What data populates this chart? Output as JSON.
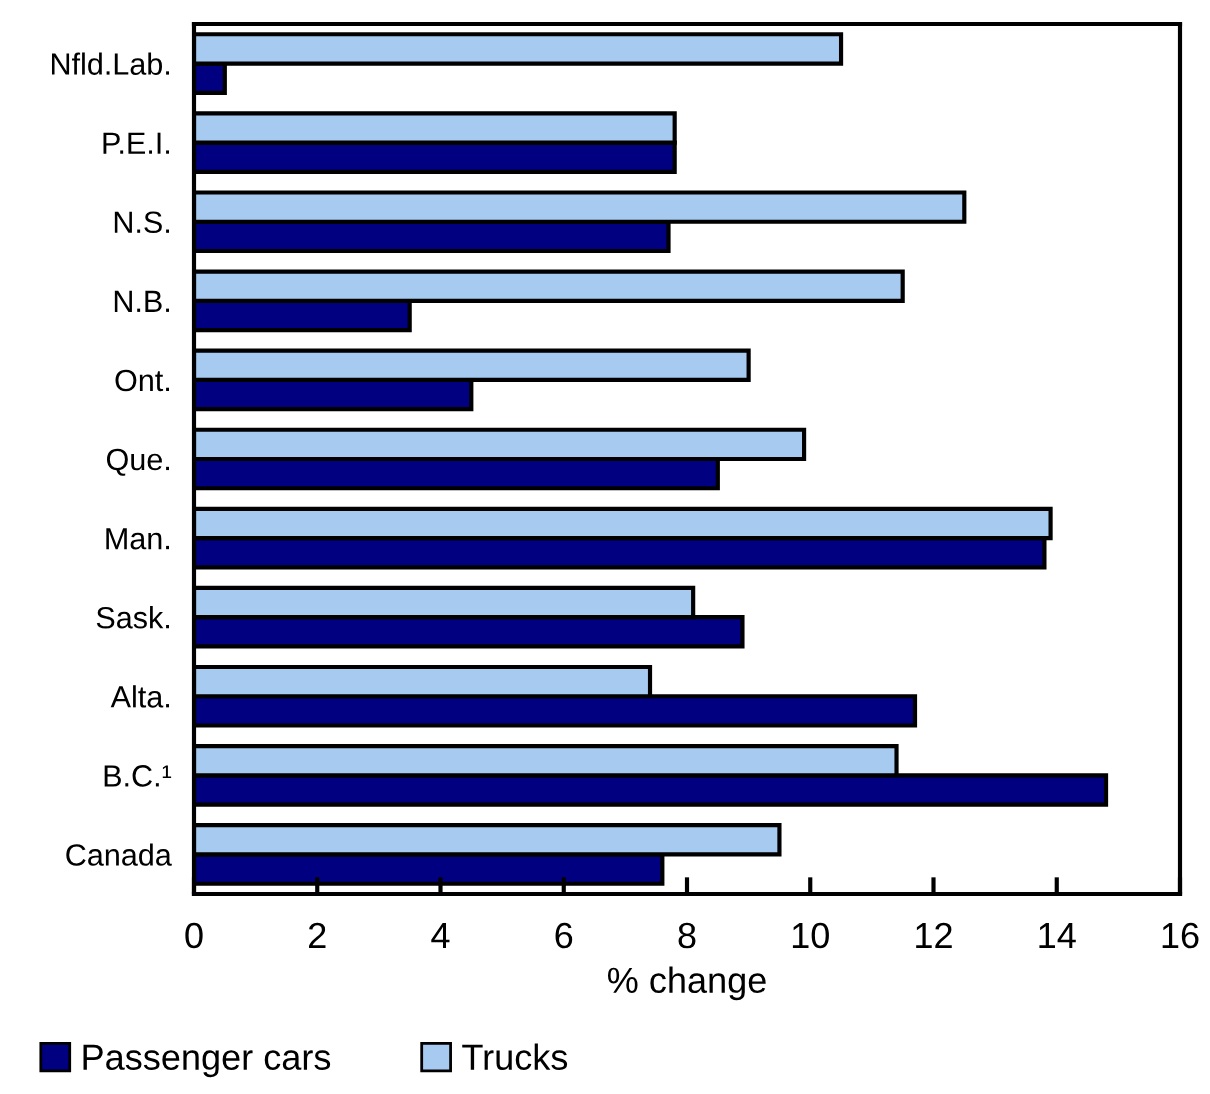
{
  "chart_data": {
    "type": "bar",
    "orientation": "horizontal",
    "xlabel": "% change",
    "categories": [
      "Nfld.Lab.",
      "P.E.I.",
      "N.S.",
      "N.B.",
      "Ont.",
      "Que.",
      "Man.",
      "Sask.",
      "Alta.",
      "B.C.¹",
      "Canada"
    ],
    "series": [
      {
        "name": "Passenger cars",
        "color": "#000080",
        "values": [
          0.5,
          7.8,
          7.7,
          3.5,
          4.5,
          8.5,
          13.8,
          8.9,
          11.7,
          14.8,
          7.6
        ]
      },
      {
        "name": "Trucks",
        "color": "#a6caf0",
        "values": [
          10.5,
          7.8,
          12.5,
          11.5,
          9.0,
          9.9,
          13.9,
          8.1,
          7.4,
          11.4,
          9.5
        ]
      }
    ],
    "xlim": [
      0,
      16
    ],
    "xticks": [
      0,
      2,
      4,
      6,
      8,
      10,
      12,
      14,
      16
    ],
    "grid": false,
    "legend": "bottom left"
  }
}
